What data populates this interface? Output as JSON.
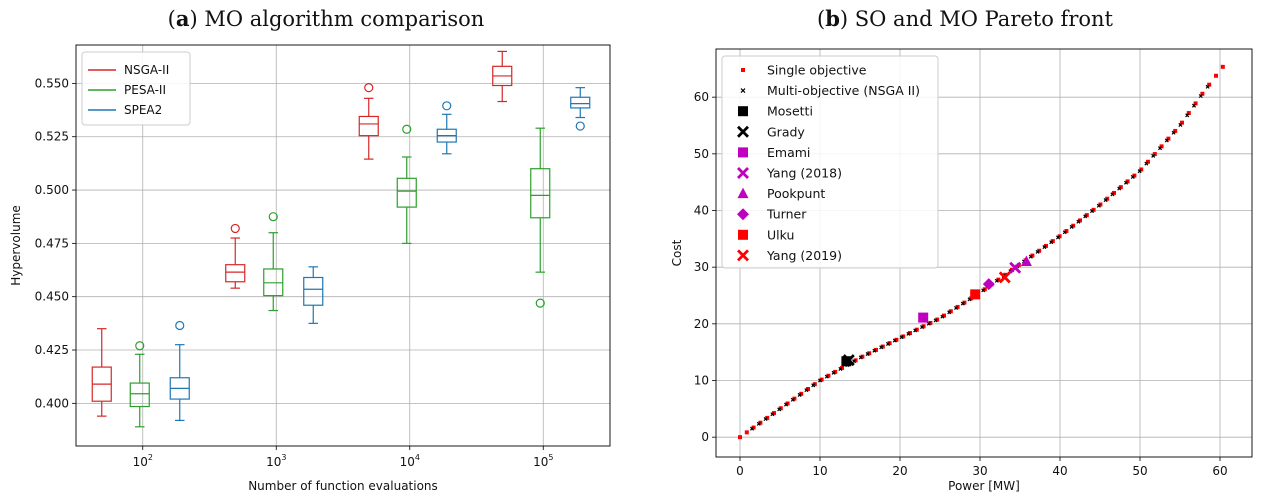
{
  "chart_data": [
    {
      "type": "box",
      "panel_label": "a",
      "title": "MO algorithm comparison",
      "xlabel": "Number of function evaluations",
      "ylabel": "Hypervolume",
      "categories": [
        "10^2",
        "10^3",
        "10^4",
        "10^5"
      ],
      "category_labels": [
        {
          "base": "10",
          "exp": "2"
        },
        {
          "base": "10",
          "exp": "3"
        },
        {
          "base": "10",
          "exp": "4"
        },
        {
          "base": "10",
          "exp": "5"
        }
      ],
      "ylim": [
        0.38,
        0.568
      ],
      "yticks": [
        0.4,
        0.425,
        0.45,
        0.475,
        0.5,
        0.525,
        0.55
      ],
      "ytick_labels": [
        "0.400",
        "0.425",
        "0.450",
        "0.475",
        "0.500",
        "0.525",
        "0.550"
      ],
      "grid": true,
      "legend_position": "top-left",
      "series": [
        {
          "name": "NSGA-II",
          "color": "#d62728",
          "boxes": [
            {
              "whislo": 0.394,
              "q1": 0.401,
              "med": 0.409,
              "q3": 0.417,
              "whishi": 0.435,
              "fliers": []
            },
            {
              "whislo": 0.454,
              "q1": 0.457,
              "med": 0.4615,
              "q3": 0.465,
              "whishi": 0.4775,
              "fliers": [
                0.482
              ]
            },
            {
              "whislo": 0.5145,
              "q1": 0.5255,
              "med": 0.531,
              "q3": 0.5345,
              "whishi": 0.543,
              "fliers": [
                0.548
              ]
            },
            {
              "whislo": 0.5415,
              "q1": 0.549,
              "med": 0.5535,
              "q3": 0.558,
              "whishi": 0.565,
              "fliers": []
            }
          ]
        },
        {
          "name": "PESA-II",
          "color": "#2ca02c",
          "boxes": [
            {
              "whislo": 0.389,
              "q1": 0.3985,
              "med": 0.4045,
              "q3": 0.4095,
              "whishi": 0.423,
              "fliers": [
                0.427
              ]
            },
            {
              "whislo": 0.4435,
              "q1": 0.4505,
              "med": 0.4565,
              "q3": 0.463,
              "whishi": 0.48,
              "fliers": [
                0.4875
              ]
            },
            {
              "whislo": 0.475,
              "q1": 0.492,
              "med": 0.4995,
              "q3": 0.5055,
              "whishi": 0.5155,
              "fliers": [
                0.5285
              ]
            },
            {
              "whislo": 0.4615,
              "q1": 0.487,
              "med": 0.4975,
              "q3": 0.51,
              "whishi": 0.529,
              "fliers": [
                0.447
              ]
            }
          ]
        },
        {
          "name": "SPEA2",
          "color": "#1f77b4",
          "boxes": [
            {
              "whislo": 0.392,
              "q1": 0.402,
              "med": 0.407,
              "q3": 0.412,
              "whishi": 0.4275,
              "fliers": [
                0.4365
              ]
            },
            {
              "whislo": 0.4375,
              "q1": 0.446,
              "med": 0.4535,
              "q3": 0.459,
              "whishi": 0.464,
              "fliers": []
            },
            {
              "whislo": 0.517,
              "q1": 0.5225,
              "med": 0.5255,
              "q3": 0.5285,
              "whishi": 0.5355,
              "fliers": [
                0.5395
              ]
            },
            {
              "whislo": 0.534,
              "q1": 0.5385,
              "med": 0.5405,
              "q3": 0.5435,
              "whishi": 0.548,
              "fliers": [
                0.53
              ]
            }
          ]
        }
      ]
    },
    {
      "type": "scatter",
      "panel_label": "b",
      "title": "SO and MO Pareto front",
      "xlabel": "Power [MW]",
      "ylabel": "Cost",
      "xlim": [
        -3,
        64
      ],
      "ylim": [
        -3.5,
        68.5
      ],
      "xticks": [
        0,
        10,
        20,
        30,
        40,
        50,
        60
      ],
      "yticks": [
        0,
        10,
        20,
        30,
        40,
        50,
        60
      ],
      "grid": true,
      "legend_position": "top-left",
      "front_points": [
        [
          0,
          0
        ],
        [
          5,
          5
        ],
        [
          10,
          10
        ],
        [
          15,
          14
        ],
        [
          20,
          17.5
        ],
        [
          25,
          21
        ],
        [
          30,
          25.5
        ],
        [
          35,
          30.5
        ],
        [
          40,
          35.5
        ],
        [
          45,
          41
        ],
        [
          50,
          47
        ],
        [
          55,
          55
        ],
        [
          58,
          61
        ],
        [
          60.7,
          66
        ]
      ],
      "series": [
        {
          "name": "Single objective",
          "marker": "small-square",
          "color": "#ff0000"
        },
        {
          "name": "Multi-objective (NSGA II)",
          "marker": "small-x",
          "color": "#000000"
        },
        {
          "name": "Mosetti",
          "marker": "square",
          "color": "#000000",
          "points": [
            [
              13.3,
              13.4
            ]
          ]
        },
        {
          "name": "Grady",
          "marker": "x",
          "color": "#000000",
          "points": [
            [
              13.6,
              13.6
            ]
          ]
        },
        {
          "name": "Emami",
          "marker": "square",
          "color": "#bf00bf",
          "points": [
            [
              22.9,
              21.1
            ]
          ]
        },
        {
          "name": "Yang (2018)",
          "marker": "x",
          "color": "#bf00bf",
          "points": [
            [
              34.4,
              29.9
            ]
          ]
        },
        {
          "name": "Pookpunt",
          "marker": "triangle",
          "color": "#bf00bf",
          "points": [
            [
              35.8,
              31.0
            ]
          ]
        },
        {
          "name": "Turner",
          "marker": "diamond",
          "color": "#bf00bf",
          "points": [
            [
              31.1,
              27.0
            ]
          ]
        },
        {
          "name": "Ulku",
          "marker": "square",
          "color": "#ff0000",
          "points": [
            [
              29.4,
              25.2
            ]
          ]
        },
        {
          "name": "Yang (2019)",
          "marker": "x",
          "color": "#ff0000",
          "points": [
            [
              33.1,
              28.2
            ]
          ]
        }
      ]
    }
  ]
}
